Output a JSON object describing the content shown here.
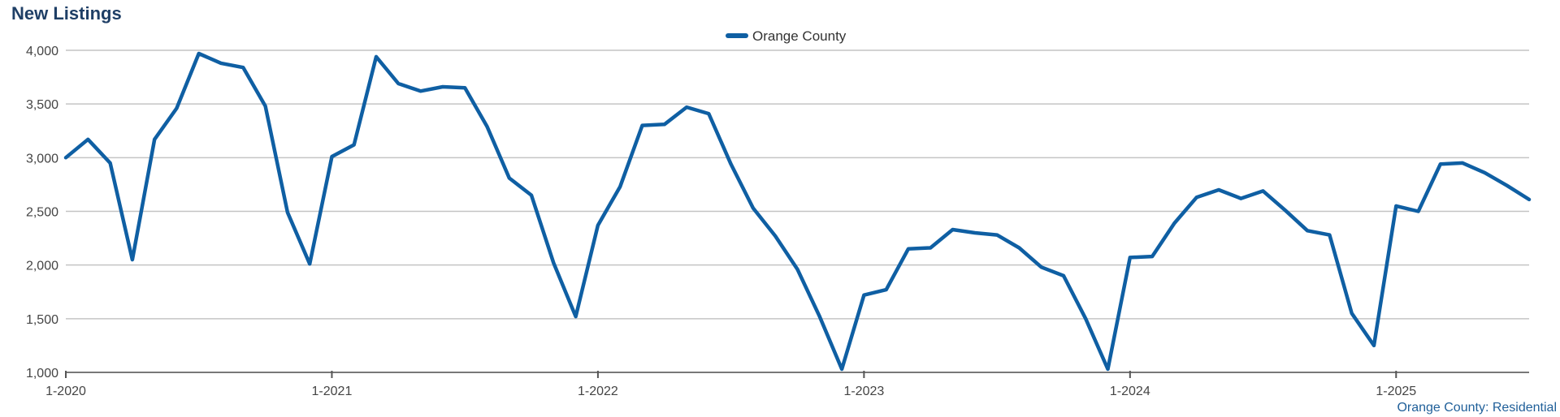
{
  "title": "New Listings",
  "footer": "Orange County: Residential",
  "colors": {
    "series": "#0f5fa3",
    "grid": "#c4c4c4",
    "axis": "#555555"
  },
  "chart_data": {
    "type": "line",
    "title": "New Listings",
    "xlabel": "",
    "ylabel": "",
    "ylim": [
      1000,
      4000
    ],
    "yticks": [
      1000,
      1500,
      2000,
      2500,
      3000,
      3500,
      4000
    ],
    "ytick_labels": [
      "1,000",
      "1,500",
      "2,000",
      "2,500",
      "3,000",
      "3,500",
      "4,000"
    ],
    "xtick_labels": [
      "1-2020",
      "1-2021",
      "1-2022",
      "1-2023",
      "1-2024",
      "1-2025"
    ],
    "grid": "horizontal",
    "legend_position": "top-center",
    "x": [
      "1-2020",
      "2-2020",
      "3-2020",
      "4-2020",
      "5-2020",
      "6-2020",
      "7-2020",
      "8-2020",
      "9-2020",
      "10-2020",
      "11-2020",
      "12-2020",
      "1-2021",
      "2-2021",
      "3-2021",
      "4-2021",
      "5-2021",
      "6-2021",
      "7-2021",
      "8-2021",
      "9-2021",
      "10-2021",
      "11-2021",
      "12-2021",
      "1-2022",
      "2-2022",
      "3-2022",
      "4-2022",
      "5-2022",
      "6-2022",
      "7-2022",
      "8-2022",
      "9-2022",
      "10-2022",
      "11-2022",
      "12-2022",
      "1-2023",
      "2-2023",
      "3-2023",
      "4-2023",
      "5-2023",
      "6-2023",
      "7-2023",
      "8-2023",
      "9-2023",
      "10-2023",
      "11-2023",
      "12-2023",
      "1-2024",
      "2-2024",
      "3-2024",
      "4-2024",
      "5-2024",
      "6-2024",
      "7-2024",
      "8-2024",
      "9-2024",
      "10-2024",
      "11-2024",
      "12-2024",
      "1-2025",
      "2-2025",
      "3-2025",
      "4-2025",
      "5-2025",
      "6-2025",
      "7-2025"
    ],
    "series": [
      {
        "name": "Orange County",
        "color": "#0f5fa3",
        "values": [
          3000,
          3170,
          2950,
          2050,
          3170,
          3460,
          3970,
          3880,
          3840,
          3480,
          2490,
          2010,
          3010,
          3120,
          3940,
          3690,
          3620,
          3660,
          3650,
          3290,
          2810,
          2650,
          2020,
          1520,
          2370,
          2730,
          3300,
          3310,
          3470,
          3410,
          2940,
          2530,
          2270,
          1960,
          1520,
          1030,
          1720,
          1770,
          2150,
          2160,
          2330,
          2300,
          2280,
          2160,
          1980,
          1900,
          1500,
          1030,
          2070,
          2080,
          2390,
          2630,
          2700,
          2620,
          2690,
          2510,
          2320,
          2280,
          1550,
          1250,
          2550,
          2500,
          2940,
          2950,
          2860,
          2740,
          2610
        ]
      }
    ]
  }
}
